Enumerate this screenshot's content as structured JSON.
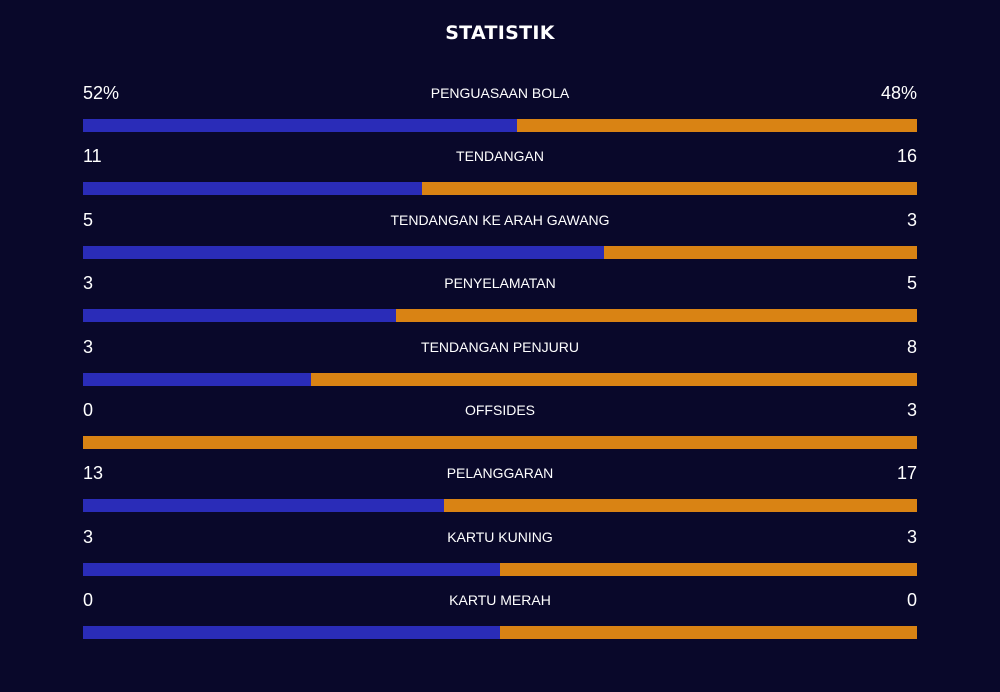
{
  "header": {
    "title": "STATISTIK"
  },
  "colors": {
    "home": "#2a2cb8",
    "away": "#d98314",
    "background": "#09082a"
  },
  "stats": [
    {
      "label": "PENGUASAAN BOLA",
      "home": "52%",
      "away": "48%",
      "home_share": 0.52
    },
    {
      "label": "TENDANGAN",
      "home": "11",
      "away": "16",
      "home_share": 0.407
    },
    {
      "label": "TENDANGAN KE ARAH GAWANG",
      "home": "5",
      "away": "3",
      "home_share": 0.625
    },
    {
      "label": "PENYELAMATAN",
      "home": "3",
      "away": "5",
      "home_share": 0.375
    },
    {
      "label": "TENDANGAN PENJURU",
      "home": "3",
      "away": "8",
      "home_share": 0.273
    },
    {
      "label": "OFFSIDES",
      "home": "0",
      "away": "3",
      "home_share": 0.0
    },
    {
      "label": "PELANGGARAN",
      "home": "13",
      "away": "17",
      "home_share": 0.433
    },
    {
      "label": "KARTU KUNING",
      "home": "3",
      "away": "3",
      "home_share": 0.5
    },
    {
      "label": "KARTU MERAH",
      "home": "0",
      "away": "0",
      "home_share": 0.5
    }
  ]
}
